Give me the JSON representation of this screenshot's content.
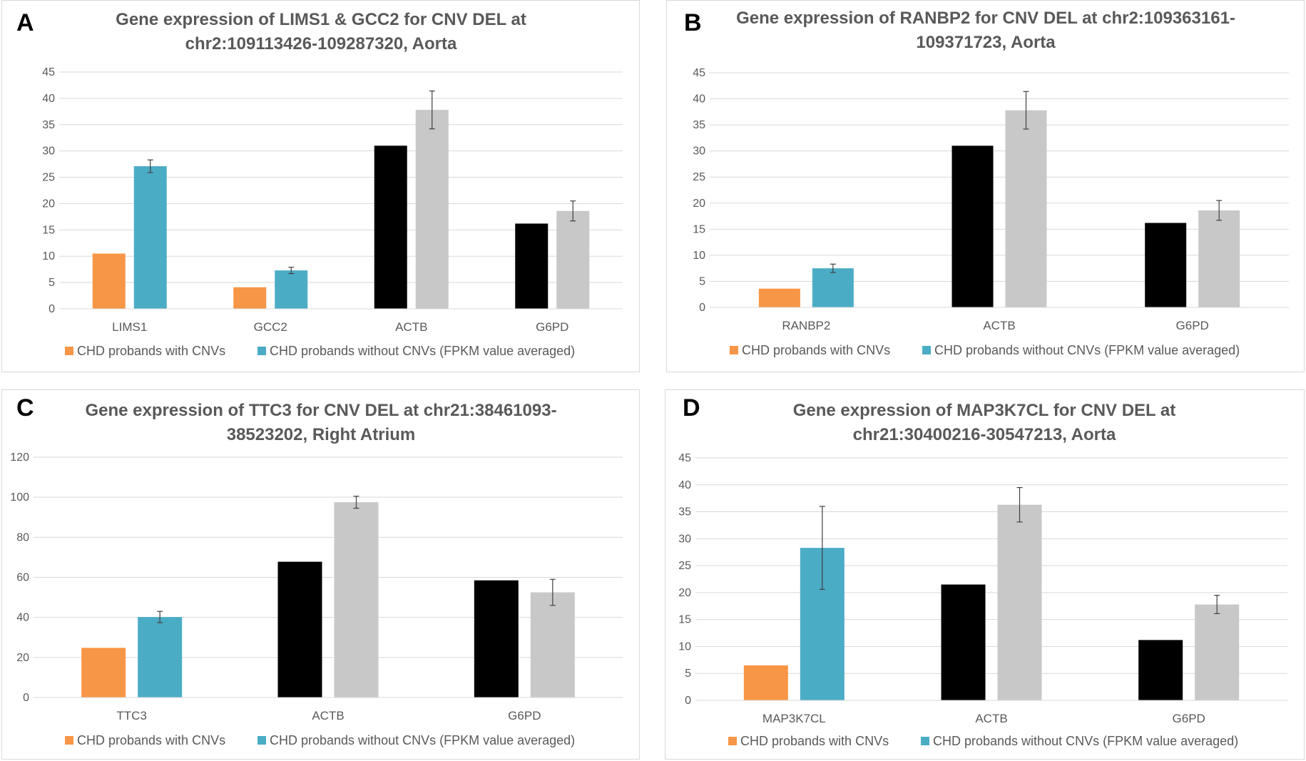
{
  "colors": {
    "with_cnv": "#F79646",
    "without_cnv": "#4BACC6",
    "actb_g6pd_with": "#000000",
    "actb_g6pd_without": "#C8C8C8"
  },
  "legend": {
    "with": "CHD probands with CNVs",
    "without": "CHD probands without CNVs (FPKM value averaged)"
  },
  "chart_data": [
    {
      "panel": "A",
      "type": "bar",
      "title_lines": [
        "Gene expression of LIMS1 & GCC2 for CNV DEL at",
        "chr2:109113426-109287320,  Aorta"
      ],
      "categories": [
        "LIMS1",
        "GCC2",
        "ACTB",
        "G6PD"
      ],
      "series": [
        {
          "name": "CHD probands with CNVs",
          "values": [
            10.5,
            4.1,
            31.0,
            16.2
          ]
        },
        {
          "name": "CHD probands without CNVs (FPKM value averaged)",
          "values": [
            27.1,
            7.3,
            37.8,
            18.6
          ],
          "errors": [
            1.2,
            0.6,
            3.6,
            1.9
          ]
        }
      ],
      "ylim": [
        0,
        45
      ],
      "yticks": [
        0,
        5,
        10,
        15,
        20,
        25,
        30,
        35,
        40,
        45
      ],
      "highlight_categories": [
        "ACTB",
        "G6PD"
      ]
    },
    {
      "panel": "B",
      "type": "bar",
      "title_lines": [
        "Gene expression of RANBP2 for CNV DEL at chr2:109363161-",
        "109371723,  Aorta"
      ],
      "categories": [
        "RANBP2",
        "ACTB",
        "G6PD"
      ],
      "series": [
        {
          "name": "CHD probands with CNVs",
          "values": [
            3.6,
            31.0,
            16.2
          ]
        },
        {
          "name": "CHD probands without CNVs (FPKM value averaged)",
          "values": [
            7.5,
            37.8,
            18.6
          ],
          "errors": [
            0.8,
            3.6,
            1.9
          ]
        }
      ],
      "ylim": [
        0,
        45
      ],
      "yticks": [
        0,
        5,
        10,
        15,
        20,
        25,
        30,
        35,
        40,
        45
      ],
      "highlight_categories": [
        "ACTB",
        "G6PD"
      ]
    },
    {
      "panel": "C",
      "type": "bar",
      "title_lines": [
        "Gene expression of TTC3 for CNV DEL at chr21:38461093-",
        "38523202, Right Atrium"
      ],
      "categories": [
        "TTC3",
        "ACTB",
        "G6PD"
      ],
      "series": [
        {
          "name": "CHD probands with CNVs",
          "values": [
            24.8,
            67.8,
            58.5
          ]
        },
        {
          "name": "CHD probands without CNVs (FPKM value averaged)",
          "values": [
            40.2,
            97.5,
            52.5
          ],
          "errors": [
            2.8,
            3.0,
            6.5
          ]
        }
      ],
      "ylim": [
        0,
        120
      ],
      "yticks": [
        0,
        20,
        40,
        60,
        80,
        100,
        120
      ],
      "highlight_categories": [
        "ACTB",
        "G6PD"
      ]
    },
    {
      "panel": "D",
      "type": "bar",
      "title_lines": [
        "Gene expression of MAP3K7CL for CNV DEL at",
        "chr21:30400216-30547213,  Aorta"
      ],
      "categories": [
        "MAP3K7CL",
        "ACTB",
        "G6PD"
      ],
      "series": [
        {
          "name": "CHD probands with CNVs",
          "values": [
            6.5,
            21.5,
            11.2
          ]
        },
        {
          "name": "CHD probands without CNVs (FPKM value averaged)",
          "values": [
            28.3,
            36.3,
            17.8
          ],
          "errors": [
            7.7,
            3.2,
            1.7
          ]
        }
      ],
      "ylim": [
        0,
        45
      ],
      "yticks": [
        0,
        5,
        10,
        15,
        20,
        25,
        30,
        35,
        40,
        45
      ],
      "highlight_categories": [
        "ACTB",
        "G6PD"
      ]
    }
  ]
}
